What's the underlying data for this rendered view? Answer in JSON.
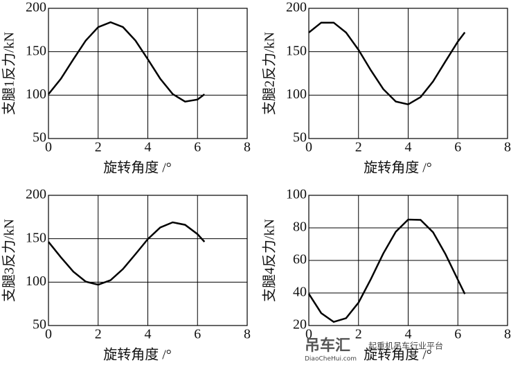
{
  "chart_data": [
    {
      "type": "line",
      "ylabel": "支腿1反力/kN",
      "xlabel": "旋转角度 /°",
      "x": [
        0,
        0.5,
        1,
        1.5,
        2,
        2.5,
        3,
        3.5,
        4,
        4.5,
        5,
        5.5,
        6,
        6.28
      ],
      "values": [
        101.1,
        118.8,
        141.2,
        162.8,
        178.3,
        184,
        178.4,
        162.9,
        141.3,
        118.9,
        101.2,
        92.5,
        94.9,
        101
      ],
      "color": "#000000",
      "xlim": [
        0,
        8
      ],
      "xticks": [
        0,
        2,
        4,
        6,
        8
      ],
      "ylim": [
        50,
        200
      ],
      "yticks": [
        50,
        100,
        150,
        200
      ],
      "grid": true
    },
    {
      "type": "line",
      "ylabel": "支腿2反力/kN",
      "xlabel": "旋转角度 /°",
      "x": [
        0,
        0.5,
        1,
        1.5,
        2,
        2.5,
        3,
        3.5,
        4,
        4.5,
        5,
        5.5,
        6,
        6.28
      ],
      "values": [
        172.1,
        183.5,
        183.5,
        172.1,
        152.1,
        128.5,
        106.9,
        92.6,
        89.3,
        97.7,
        115.7,
        138.8,
        161.7,
        172.3
      ],
      "color": "#000000",
      "xlim": [
        0,
        8
      ],
      "xticks": [
        0,
        2,
        4,
        6,
        8
      ],
      "ylim": [
        50,
        200
      ],
      "yticks": [
        50,
        100,
        150,
        200
      ],
      "grid": true
    },
    {
      "type": "line",
      "ylabel": "支腿3反力/kN",
      "xlabel": "旋转角度 /°",
      "x": [
        0,
        0.5,
        1,
        1.5,
        2,
        2.5,
        3,
        3.5,
        4,
        4.5,
        5,
        5.5,
        6,
        6.28
      ],
      "values": [
        146.4,
        128.7,
        112.1,
        100.6,
        97,
        102.3,
        115.1,
        132.2,
        149.6,
        162.9,
        168.9,
        166,
        155.2,
        146.5
      ],
      "color": "#000000",
      "xlim": [
        0,
        8
      ],
      "xticks": [
        0,
        2,
        4,
        6,
        8
      ],
      "ylim": [
        50,
        200
      ],
      "yticks": [
        50,
        100,
        150,
        200
      ],
      "grid": true
    },
    {
      "type": "line",
      "ylabel": "支腿4反力/kN",
      "xlabel": "旋转角度 /°",
      "x": [
        0,
        0.5,
        1,
        1.5,
        2,
        2.5,
        3,
        3.5,
        4,
        4.5,
        5,
        5.5,
        6,
        6.28
      ],
      "values": [
        39.5,
        27.6,
        22.2,
        24.5,
        34.1,
        48.6,
        64.3,
        77.6,
        85.1,
        84.9,
        77.3,
        63.9,
        48.1,
        39.4
      ],
      "color": "#000000",
      "xlim": [
        0,
        8
      ],
      "xticks": [
        0,
        2,
        4,
        6,
        8
      ],
      "ylim": [
        20,
        100
      ],
      "yticks": [
        20,
        40,
        60,
        80,
        100
      ],
      "grid": true
    }
  ],
  "watermark": {
    "name": "吊车汇",
    "url": "DiaoCheHui.com",
    "slogan": "起重机吊车行业平台"
  }
}
